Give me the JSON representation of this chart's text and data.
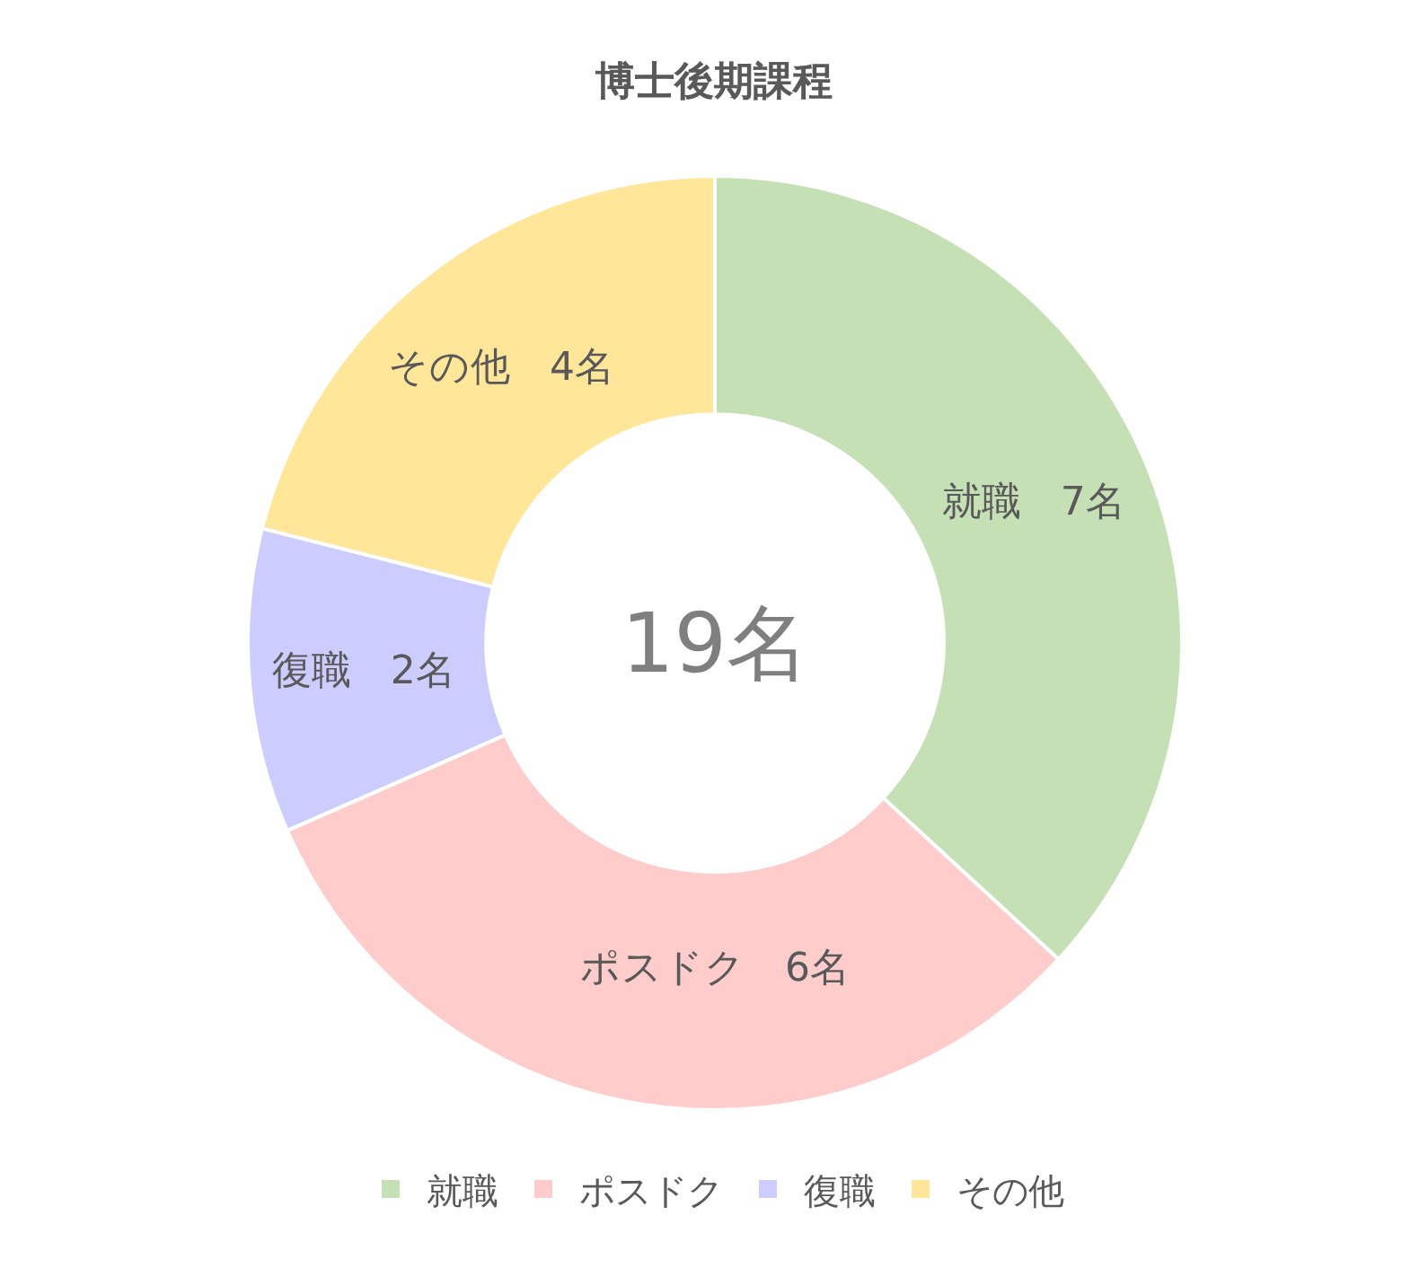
{
  "chart_data": {
    "type": "donut",
    "title": "博士後期課程",
    "categories": [
      "就職",
      "ポスドク",
      "復職",
      "その他"
    ],
    "values": [
      7,
      6,
      2,
      4
    ],
    "colors": [
      "#c5e0b4",
      "#ffcccc",
      "#ccccff",
      "#ffe699"
    ],
    "value_labels": [
      "就職　7名",
      "ポスドク　6名",
      "復職　2名",
      "その他　4名"
    ],
    "annotations": [
      "19名"
    ],
    "legend": "bottom"
  }
}
